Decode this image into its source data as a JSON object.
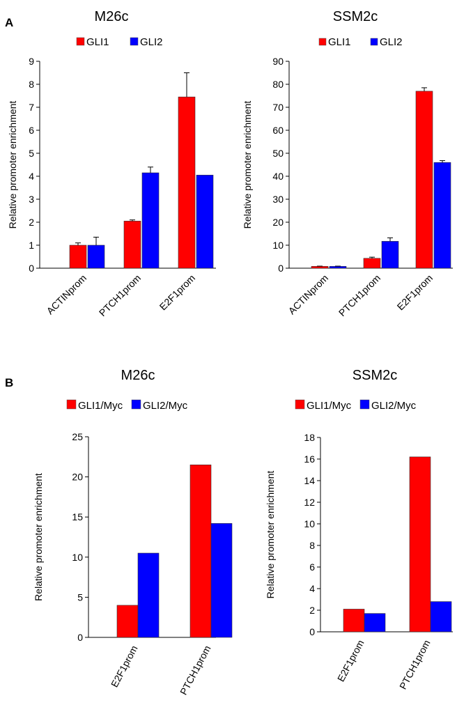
{
  "panels": [
    {
      "letter": "A"
    },
    {
      "letter": "B"
    }
  ],
  "chart_data": [
    {
      "type": "bar",
      "panel": "A",
      "title": "M26c",
      "ylabel": "Relative promoter enrichment",
      "xlabel": "",
      "categories": [
        "ACTINprom",
        "PTCH1prom",
        "E2F1prom"
      ],
      "series": [
        {
          "name": "GLI1",
          "color": "#ff0000",
          "values": [
            1.0,
            2.05,
            7.45
          ],
          "errors": [
            0.1,
            0.05,
            1.05
          ]
        },
        {
          "name": "GLI2",
          "color": "#0000ff",
          "values": [
            1.0,
            4.15,
            4.05
          ],
          "errors": [
            0.35,
            0.25,
            0
          ]
        }
      ],
      "ylim": [
        0,
        9
      ],
      "yticks": [
        0,
        1,
        2,
        3,
        4,
        5,
        6,
        7,
        8,
        9
      ],
      "legend": "top"
    },
    {
      "type": "bar",
      "panel": "A",
      "title": "SSM2c",
      "ylabel": "Relative promoter enrichment",
      "xlabel": "",
      "categories": [
        "ACTINprom",
        "PTCH1prom",
        "E2F1prom"
      ],
      "series": [
        {
          "name": "GLI1",
          "color": "#ff0000",
          "values": [
            0.8,
            4.3,
            77
          ],
          "errors": [
            0.1,
            0.5,
            1.5
          ]
        },
        {
          "name": "GLI2",
          "color": "#0000ff",
          "values": [
            0.8,
            11.7,
            46
          ],
          "errors": [
            0.1,
            1.5,
            0.8
          ]
        }
      ],
      "ylim": [
        0,
        90
      ],
      "yticks": [
        0,
        10,
        20,
        30,
        40,
        50,
        60,
        70,
        80,
        90
      ],
      "legend": "top"
    },
    {
      "type": "bar",
      "panel": "B",
      "title": "M26c",
      "ylabel": "Relative promoter enrichment",
      "xlabel": "",
      "categories": [
        "E2F1prom",
        "PTCH1prom"
      ],
      "series": [
        {
          "name": "GLI1/Myc",
          "color": "#ff0000",
          "values": [
            4.0,
            21.5
          ]
        },
        {
          "name": "GLI2/Myc",
          "color": "#0000ff",
          "values": [
            10.5,
            14.2
          ]
        }
      ],
      "ylim": [
        0,
        25
      ],
      "yticks": [
        0,
        5,
        10,
        15,
        20,
        25
      ],
      "legend": "top"
    },
    {
      "type": "bar",
      "panel": "B",
      "title": "SSM2c",
      "ylabel": "Relative promoter enrichment",
      "xlabel": "",
      "categories": [
        "E2F1prom",
        "PTCH1prom"
      ],
      "series": [
        {
          "name": "GLI1/Myc",
          "color": "#ff0000",
          "values": [
            2.1,
            16.2
          ]
        },
        {
          "name": "GLI2/Myc",
          "color": "#0000ff",
          "values": [
            1.7,
            2.8
          ]
        }
      ],
      "ylim": [
        0,
        18
      ],
      "yticks": [
        0,
        2,
        4,
        6,
        8,
        10,
        12,
        14,
        16,
        18
      ],
      "legend": "top"
    }
  ]
}
